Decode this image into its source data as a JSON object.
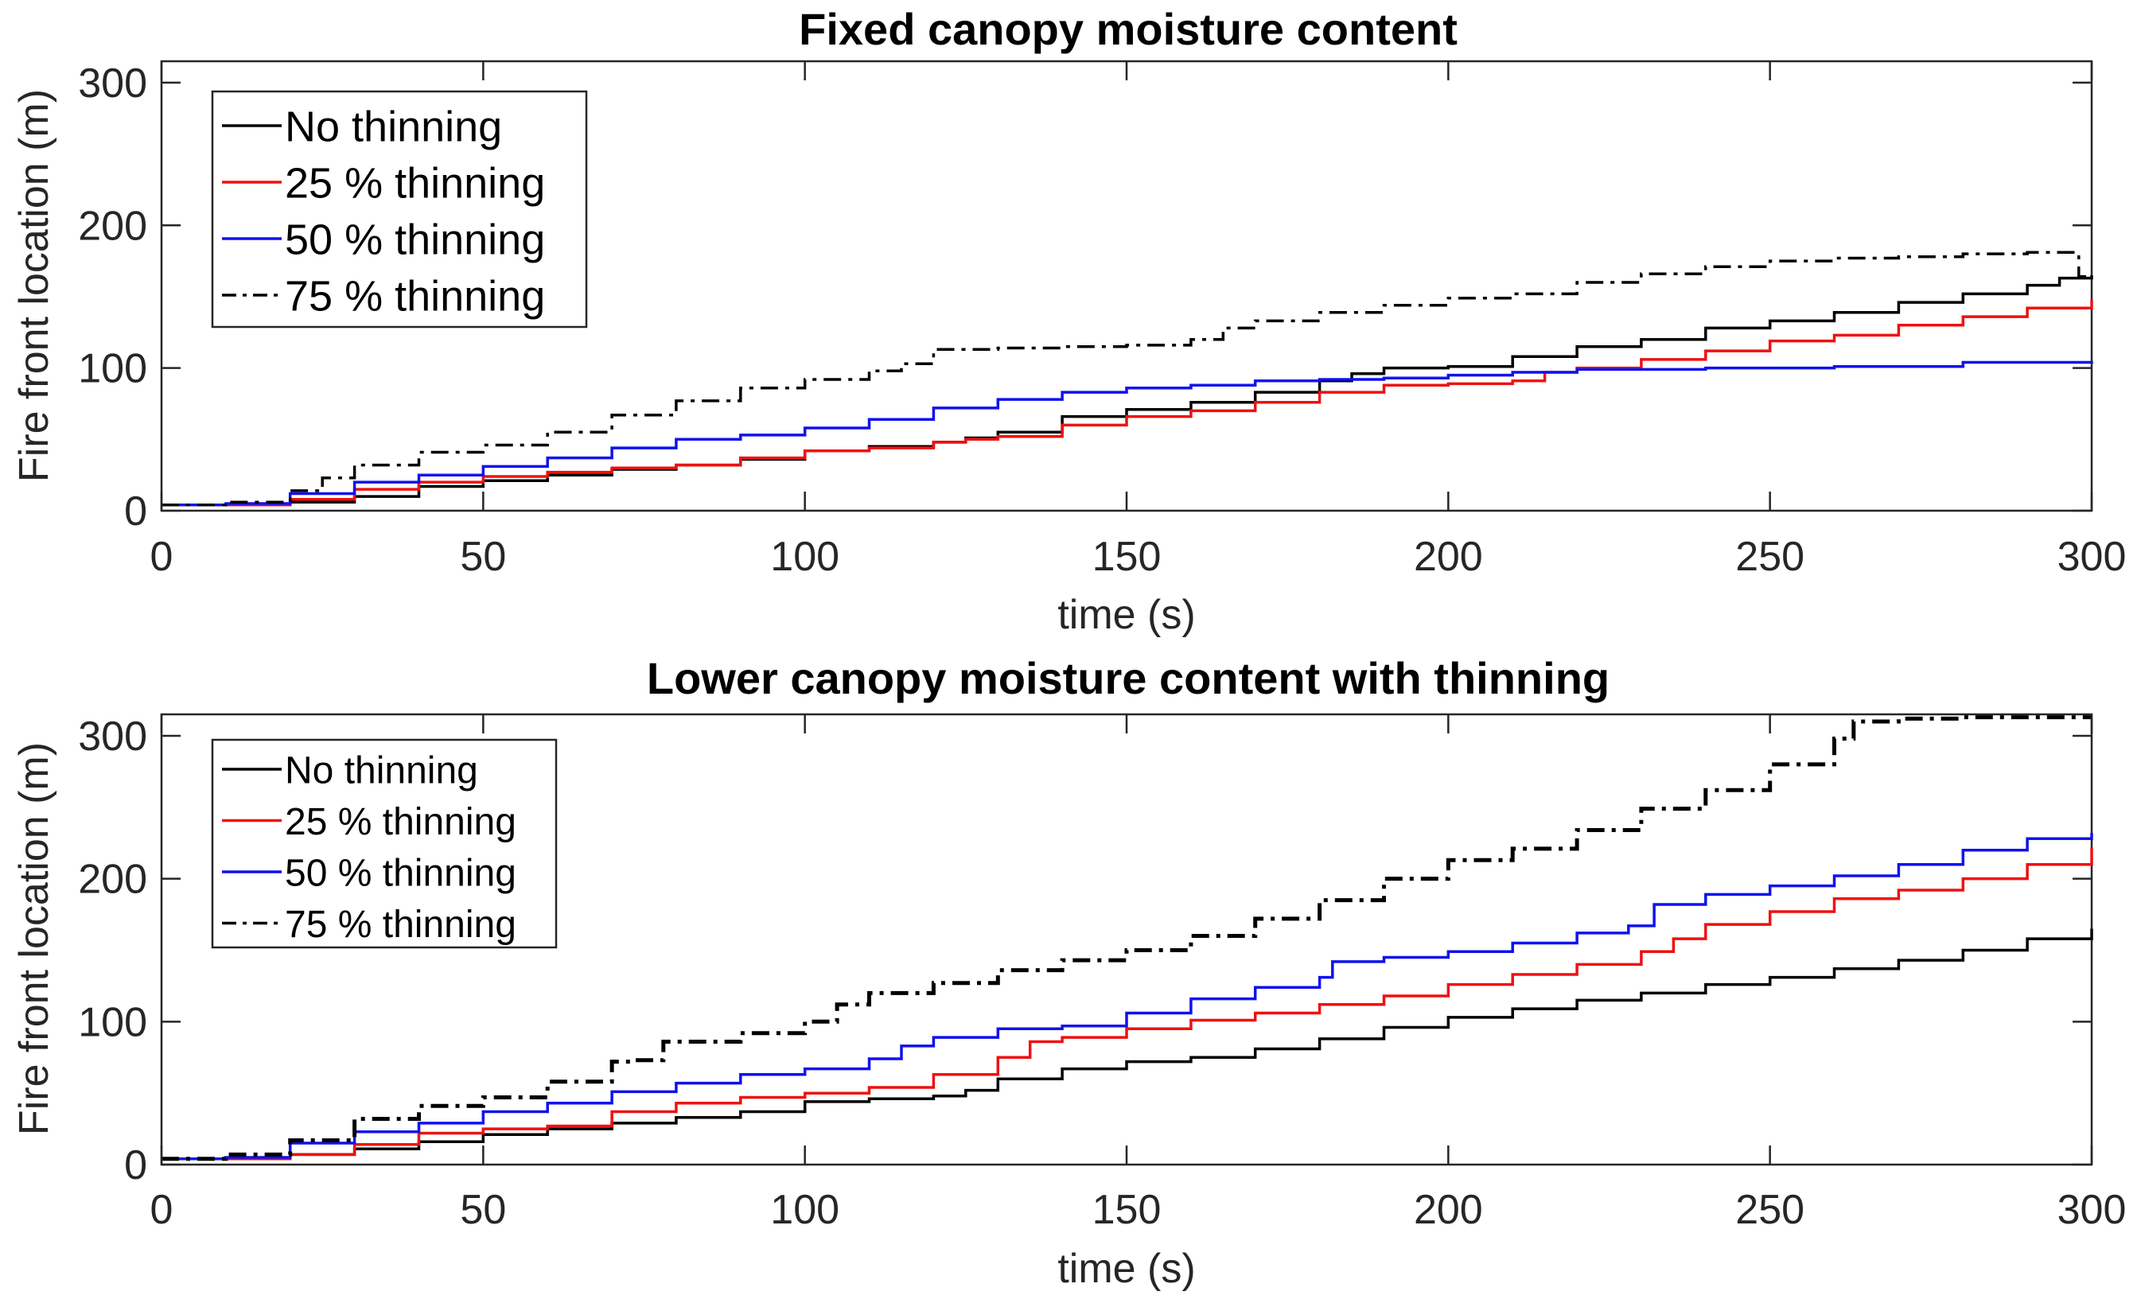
{
  "chart_data": [
    {
      "type": "line",
      "title": "Fixed canopy moisture content",
      "xlabel": "time (s)",
      "ylabel": "Fire front location (m)",
      "xlim": [
        0,
        300
      ],
      "ylim": [
        0,
        315
      ],
      "xticks": [
        "0",
        "50",
        "100",
        "150",
        "200",
        "250",
        "300"
      ],
      "yticks": [
        "0",
        "100",
        "200",
        "300"
      ],
      "legend_position": "top-left",
      "series": [
        {
          "name": "No thinning",
          "color": "#000000",
          "style": "solid",
          "x": [
            0,
            10,
            20,
            30,
            40,
            50,
            60,
            70,
            80,
            90,
            100,
            110,
            120,
            125,
            130,
            140,
            150,
            160,
            170,
            180,
            185,
            190,
            200,
            210,
            220,
            230,
            240,
            250,
            260,
            270,
            280,
            290,
            295,
            300
          ],
          "y": [
            4,
            4,
            6,
            10,
            17,
            21,
            25,
            29,
            32,
            36,
            42,
            45,
            48,
            51,
            55,
            66,
            71,
            76,
            83,
            91,
            96,
            100,
            101,
            108,
            115,
            120,
            128,
            133,
            139,
            146,
            152,
            158,
            163,
            165
          ]
        },
        {
          "name": "25 % thinning",
          "color": "#ee1111",
          "style": "solid",
          "x": [
            0,
            10,
            20,
            30,
            40,
            50,
            60,
            70,
            80,
            90,
            100,
            110,
            120,
            125,
            130,
            140,
            150,
            160,
            170,
            180,
            190,
            200,
            210,
            215,
            220,
            230,
            240,
            250,
            260,
            270,
            280,
            290,
            300
          ],
          "y": [
            4,
            4,
            8,
            15,
            20,
            24,
            27,
            30,
            32,
            37,
            42,
            44,
            48,
            50,
            52,
            60,
            66,
            70,
            76,
            83,
            88,
            89,
            91,
            97,
            100,
            106,
            112,
            119,
            123,
            130,
            136,
            142,
            148
          ]
        },
        {
          "name": "50 % thinning",
          "color": "#1111ee",
          "style": "solid",
          "x": [
            0,
            10,
            20,
            30,
            40,
            50,
            60,
            70,
            80,
            90,
            100,
            110,
            120,
            130,
            140,
            150,
            160,
            170,
            180,
            190,
            200,
            210,
            220,
            240,
            260,
            280,
            300
          ],
          "y": [
            4,
            5,
            12,
            20,
            25,
            31,
            37,
            44,
            50,
            53,
            58,
            64,
            72,
            78,
            83,
            86,
            88,
            91,
            92,
            93,
            95,
            97,
            99,
            100,
            101,
            104,
            105
          ]
        },
        {
          "name": "75 % thinning",
          "color": "#000000",
          "style": "dashdot",
          "x": [
            0,
            10,
            20,
            25,
            30,
            40,
            50,
            60,
            70,
            80,
            90,
            100,
            110,
            115,
            120,
            130,
            140,
            150,
            160,
            165,
            170,
            180,
            190,
            200,
            210,
            220,
            230,
            240,
            250,
            260,
            270,
            280,
            290,
            296,
            298,
            300
          ],
          "y": [
            4,
            6,
            14,
            23,
            32,
            41,
            46,
            55,
            67,
            77,
            86,
            92,
            98,
            103,
            113,
            114,
            115,
            116,
            120,
            128,
            133,
            139,
            144,
            149,
            152,
            160,
            166,
            171,
            175,
            177,
            178,
            180,
            181,
            181,
            164,
            163
          ]
        }
      ]
    },
    {
      "type": "line",
      "title": "Lower canopy moisture content with thinning",
      "xlabel": "time (s)",
      "ylabel": "Fire front location (m)",
      "xlim": [
        0,
        300
      ],
      "ylim": [
        0,
        315
      ],
      "xticks": [
        "0",
        "50",
        "100",
        "150",
        "200",
        "250",
        "300"
      ],
      "yticks": [
        "0",
        "100",
        "200",
        "300"
      ],
      "legend_position": "top-left",
      "series": [
        {
          "name": "No thinning",
          "color": "#000000",
          "style": "solid",
          "x": [
            0,
            10,
            20,
            30,
            40,
            50,
            60,
            70,
            80,
            90,
            100,
            110,
            120,
            125,
            130,
            140,
            150,
            160,
            170,
            180,
            190,
            200,
            210,
            220,
            230,
            240,
            250,
            260,
            270,
            280,
            290,
            300
          ],
          "y": [
            4,
            4,
            7,
            11,
            16,
            21,
            25,
            29,
            33,
            37,
            44,
            46,
            48,
            52,
            60,
            67,
            72,
            75,
            81,
            88,
            96,
            103,
            109,
            115,
            120,
            126,
            131,
            137,
            143,
            150,
            158,
            165
          ]
        },
        {
          "name": "25 % thinning",
          "color": "#ee1111",
          "style": "solid",
          "x": [
            0,
            10,
            20,
            30,
            40,
            50,
            60,
            70,
            80,
            90,
            100,
            110,
            120,
            130,
            135,
            140,
            150,
            160,
            170,
            180,
            190,
            200,
            210,
            220,
            230,
            235,
            240,
            250,
            260,
            270,
            280,
            290,
            300
          ],
          "y": [
            4,
            4,
            7,
            14,
            22,
            25,
            27,
            37,
            43,
            47,
            50,
            54,
            63,
            75,
            86,
            89,
            95,
            101,
            106,
            112,
            118,
            126,
            133,
            140,
            149,
            158,
            168,
            177,
            186,
            192,
            200,
            210,
            222
          ]
        },
        {
          "name": "50 % thinning",
          "color": "#1111ee",
          "style": "solid",
          "x": [
            0,
            10,
            20,
            30,
            40,
            50,
            60,
            70,
            80,
            90,
            100,
            110,
            115,
            120,
            130,
            140,
            150,
            160,
            170,
            180,
            182,
            190,
            200,
            210,
            220,
            228,
            232,
            240,
            250,
            260,
            270,
            280,
            290,
            300
          ],
          "y": [
            4,
            5,
            15,
            23,
            29,
            37,
            43,
            51,
            57,
            63,
            67,
            74,
            83,
            89,
            95,
            97,
            106,
            116,
            124,
            131,
            142,
            145,
            149,
            155,
            162,
            167,
            182,
            189,
            195,
            202,
            210,
            220,
            228,
            232
          ]
        },
        {
          "name": "75 % thinning",
          "color": "#000000",
          "style": "dashdot",
          "x": [
            0,
            10,
            20,
            30,
            40,
            50,
            60,
            70,
            73,
            78,
            90,
            100,
            105,
            110,
            120,
            130,
            140,
            150,
            160,
            170,
            180,
            190,
            200,
            210,
            220,
            230,
            240,
            250,
            260,
            263,
            270,
            280,
            290,
            300
          ],
          "y": [
            4,
            7,
            17,
            32,
            41,
            47,
            58,
            72,
            73,
            86,
            92,
            100,
            112,
            120,
            127,
            136,
            143,
            150,
            160,
            172,
            185,
            200,
            213,
            221,
            234,
            249,
            262,
            280,
            298,
            310,
            312,
            313,
            313,
            313
          ]
        }
      ]
    }
  ]
}
